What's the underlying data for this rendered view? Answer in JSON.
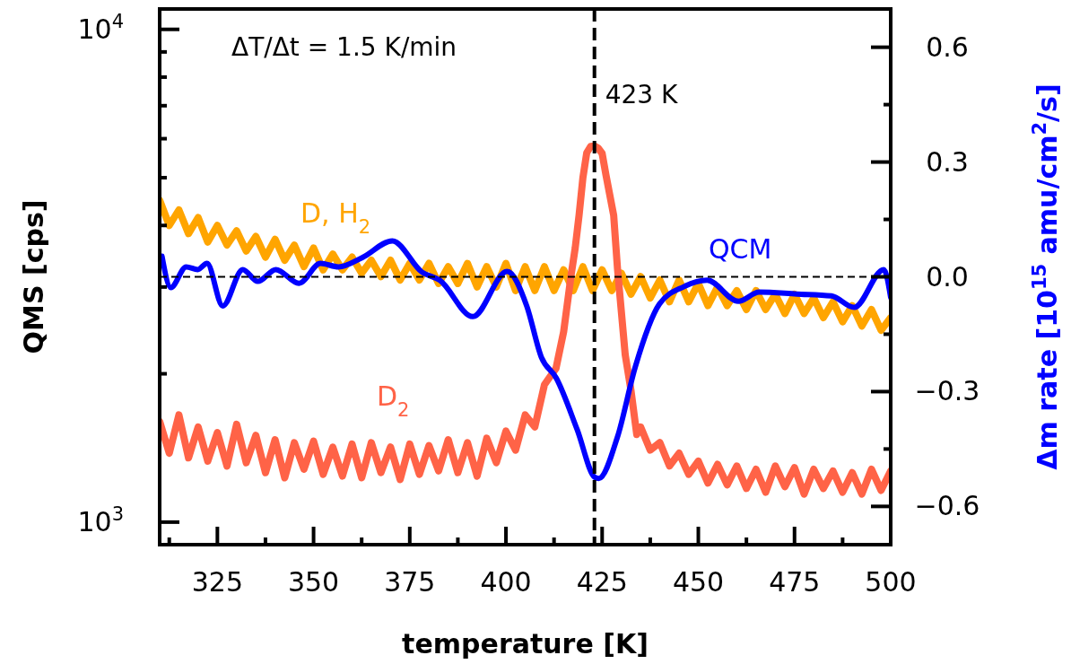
{
  "chart_data": {
    "type": "line",
    "xlabel": "temperature [K]",
    "ylabel": "QMS [cps]",
    "y2label": "Δm rate [10$^{15}$ amu/cm$^{2}$/s]",
    "xlim": [
      310,
      500
    ],
    "xticks": [
      {
        "value": 312.5,
        "label": null
      },
      325,
      {
        "value": 337.5,
        "label": null
      },
      350,
      {
        "value": 362.5,
        "label": null
      },
      375,
      {
        "value": 387.5,
        "label": null
      },
      400,
      {
        "value": 412.5,
        "label": null
      },
      425,
      {
        "value": 437.5,
        "label": null
      },
      450,
      {
        "value": 462.5,
        "label": null
      },
      475,
      {
        "value": 487.5,
        "label": null
      },
      500
    ],
    "log": "y",
    "ylim": [
      900,
      11000
    ],
    "yticks": [
      {
        "value": 1000,
        "label": "10$^{3}$"
      },
      {
        "value": 2000,
        "label": null
      },
      {
        "value": 3000,
        "label": null
      },
      {
        "value": 4000,
        "label": null
      },
      {
        "value": 5000,
        "label": null
      },
      {
        "value": 6000,
        "label": null
      },
      {
        "value": 7000,
        "label": null
      },
      {
        "value": 8000,
        "label": null
      },
      {
        "value": 9000,
        "label": null
      },
      {
        "value": 10000,
        "label": "10$^{4}$"
      }
    ],
    "y2lim": [
      -0.7,
      0.7
    ],
    "y2ticks": [
      {
        "value": -0.6,
        "label": "−0.6"
      },
      {
        "value": -0.45,
        "label": null
      },
      {
        "value": -0.3,
        "label": "−0.3"
      },
      {
        "value": -0.15,
        "label": null
      },
      {
        "value": 0,
        "label": "0.0"
      },
      {
        "value": 0.15,
        "label": null
      },
      {
        "value": 0.3,
        "label": "0.3"
      },
      {
        "value": 0.45,
        "label": null
      },
      {
        "value": 0.6,
        "label": "0.6"
      }
    ],
    "grid": false,
    "line_style": "solid",
    "marker": "none",
    "annotations": [
      "ΔT/Δt = 1.5 K/min"
    ],
    "ref_lines": [
      {
        "axis": "x",
        "value": 423,
        "label": "423 K",
        "color": "#000000",
        "line_style": "dashed"
      },
      {
        "axis": "y2",
        "value": 0,
        "label": null,
        "color": "#000000",
        "line_style": "dashed"
      }
    ],
    "series": [
      {
        "name": "D, H$_{2}$",
        "color": "#ffa500",
        "x": [
          310,
          312.5,
          315,
          317.5,
          320,
          322.5,
          325,
          327.5,
          330,
          332.5,
          335,
          337.5,
          340,
          342.5,
          345,
          347.5,
          350,
          352.5,
          355,
          357.5,
          360,
          362.5,
          365,
          367.5,
          370,
          372.5,
          375,
          377.5,
          380,
          382.5,
          385,
          387.5,
          390,
          392.5,
          395,
          397.5,
          400,
          402.5,
          405,
          407.5,
          410,
          412.5,
          415,
          417.5,
          420,
          422.5,
          425,
          427.5,
          430,
          432.5,
          435,
          437.5,
          440,
          442.5,
          445,
          447.5,
          450,
          452.5,
          455,
          457.5,
          460,
          462.5,
          465,
          467.5,
          470,
          472.5,
          475,
          477.5,
          480,
          482.5,
          485,
          487.5,
          490,
          492.5,
          495,
          497.5,
          500
        ],
        "values": [
          4500,
          4000,
          4300,
          3850,
          4150,
          3700,
          4000,
          3650,
          3900,
          3550,
          3800,
          3450,
          3750,
          3400,
          3650,
          3300,
          3600,
          3250,
          3500,
          3250,
          3450,
          3200,
          3400,
          3150,
          3400,
          3100,
          3350,
          3100,
          3350,
          3050,
          3300,
          3050,
          3350,
          3000,
          3300,
          3000,
          3350,
          2950,
          3300,
          2950,
          3300,
          2950,
          3250,
          2950,
          3300,
          2950,
          3250,
          2950,
          3200,
          2900,
          3150,
          2850,
          3100,
          2800,
          3100,
          2800,
          3050,
          2750,
          3000,
          2750,
          2950,
          2700,
          2950,
          2700,
          2900,
          2650,
          2900,
          2650,
          2850,
          2600,
          2800,
          2550,
          2750,
          2500,
          2700,
          2450,
          2600
        ]
      },
      {
        "name": "D$_{2}$",
        "color": "#ff6347",
        "x": [
          310,
          312.5,
          315,
          317.5,
          320,
          322.5,
          325,
          327.5,
          330,
          332.5,
          335,
          337.5,
          340,
          342.5,
          345,
          347.5,
          350,
          352.5,
          355,
          357.5,
          360,
          362.5,
          365,
          367.5,
          370,
          372.5,
          375,
          377.5,
          380,
          382.5,
          385,
          387.5,
          390,
          392.5,
          395,
          397.5,
          400,
          402.5,
          405,
          407.5,
          410,
          412,
          413,
          415,
          417,
          418,
          419,
          420,
          421,
          422,
          423,
          424,
          425,
          426,
          428,
          429,
          431,
          432.5,
          434,
          435,
          437.5,
          440,
          442.5,
          445,
          447.5,
          450,
          452.5,
          455,
          457.5,
          460,
          462.5,
          465,
          467.5,
          470,
          472.5,
          475,
          477.5,
          480,
          482.5,
          485,
          487.5,
          490,
          492.5,
          495,
          497.5,
          500
        ],
        "values": [
          1600,
          1380,
          1650,
          1350,
          1560,
          1330,
          1520,
          1300,
          1580,
          1320,
          1500,
          1260,
          1470,
          1230,
          1450,
          1280,
          1460,
          1250,
          1420,
          1240,
          1440,
          1230,
          1450,
          1260,
          1420,
          1220,
          1440,
          1250,
          1430,
          1270,
          1470,
          1260,
          1450,
          1240,
          1480,
          1320,
          1530,
          1400,
          1650,
          1560,
          1900,
          2000,
          2050,
          2435,
          3196,
          3600,
          4193,
          5000,
          5618,
          5785,
          5800,
          5737,
          5600,
          5061,
          4193,
          3264,
          2185,
          1850,
          1506,
          1560,
          1400,
          1450,
          1300,
          1380,
          1250,
          1330,
          1200,
          1310,
          1190,
          1300,
          1170,
          1280,
          1150,
          1300,
          1180,
          1290,
          1140,
          1280,
          1170,
          1270,
          1150,
          1260,
          1140,
          1280,
          1160,
          1270
        ]
      },
      {
        "name": "QCM",
        "color": "#0000ff",
        "axis": "y2",
        "x": [
          310.6,
          312.9,
          316.9,
          319.9,
          322.3,
          326.4,
          331.6,
          335.5,
          340.2,
          346.2,
          351.8,
          356.5,
          362.6,
          370.5,
          378.2,
          382.8,
          391.4,
          400.3,
          405.4,
          409.2,
          413.1,
          418.5,
          423.1,
          424.1,
          429,
          433.6,
          439.9,
          446.2,
          452.3,
          460.4,
          465.8,
          475.6,
          484.6,
          490.5,
          498.2,
          500
        ],
        "values": [
          0.054,
          -0.028,
          0.026,
          0.019,
          0.035,
          -0.076,
          0.019,
          -0.012,
          0.019,
          -0.017,
          0.035,
          0.026,
          0.05,
          0.094,
          0.012,
          -0.009,
          -0.104,
          0.014,
          -0.076,
          -0.21,
          -0.265,
          -0.399,
          -0.524,
          -0.527,
          -0.418,
          -0.236,
          -0.071,
          -0.026,
          -0.009,
          -0.064,
          -0.04,
          -0.045,
          -0.05,
          -0.08,
          0.019,
          -0.054
        ]
      }
    ]
  }
}
